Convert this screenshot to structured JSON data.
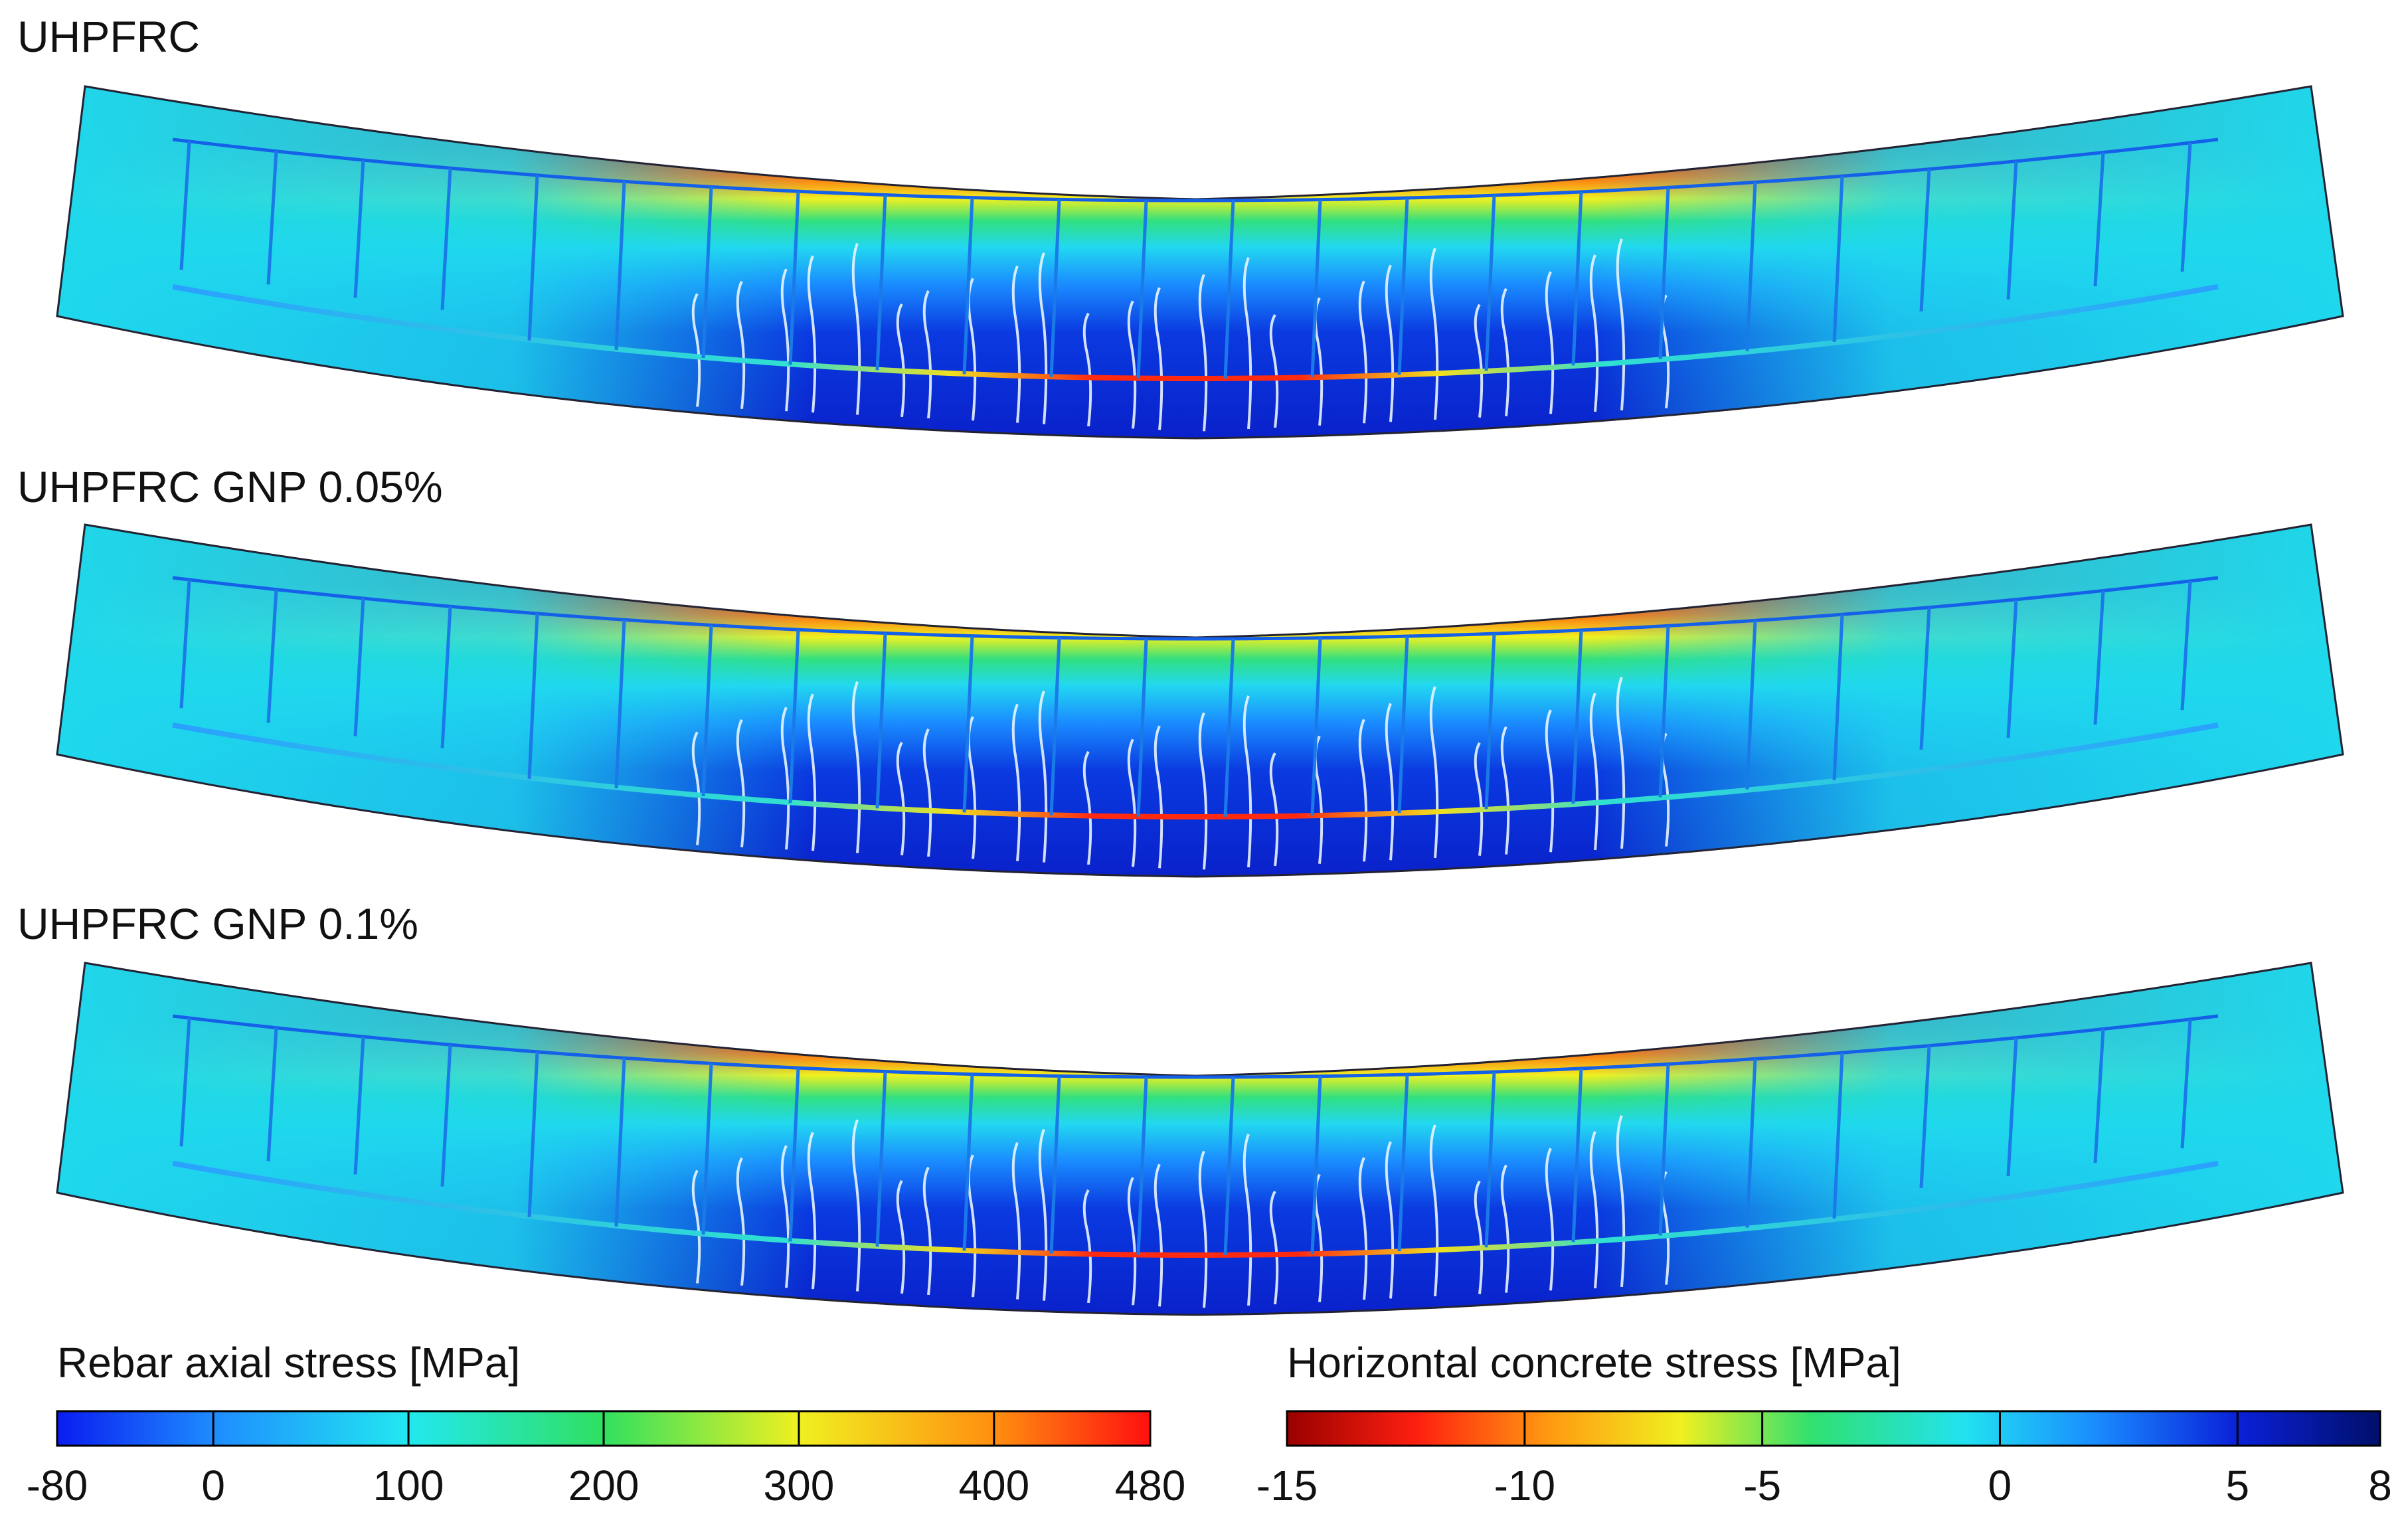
{
  "panels": [
    {
      "title": "UHPFRC"
    },
    {
      "title": "UHPFRC GNP 0.05%"
    },
    {
      "title": "UHPFRC GNP 0.1%"
    }
  ],
  "legends": {
    "rebar": {
      "title": "Rebar axial stress [MPa]",
      "ticks": [
        "-80",
        "0",
        "100",
        "200",
        "300",
        "400",
        "480"
      ],
      "tick_values": [
        -80,
        0,
        100,
        200,
        300,
        400,
        480
      ],
      "range": [
        -80,
        480
      ],
      "colors": [
        "#0a1cf0",
        "#1e8cff",
        "#22e8f0",
        "#30e060",
        "#f0f020",
        "#ff9010",
        "#ff1010"
      ]
    },
    "concrete": {
      "title": "Horizontal concrete stress [MPa]",
      "ticks": [
        "-15",
        "-10",
        "-5",
        "0",
        "5",
        "8"
      ],
      "tick_values": [
        -15,
        -10,
        -5,
        0,
        5,
        8
      ],
      "range": [
        -15,
        8
      ],
      "colors": [
        "#9a0000",
        "#ff2010",
        "#ff9a10",
        "#f0f020",
        "#30e070",
        "#22e2f0",
        "#1a8cff",
        "#0a20d8",
        "#00106a"
      ]
    }
  }
}
